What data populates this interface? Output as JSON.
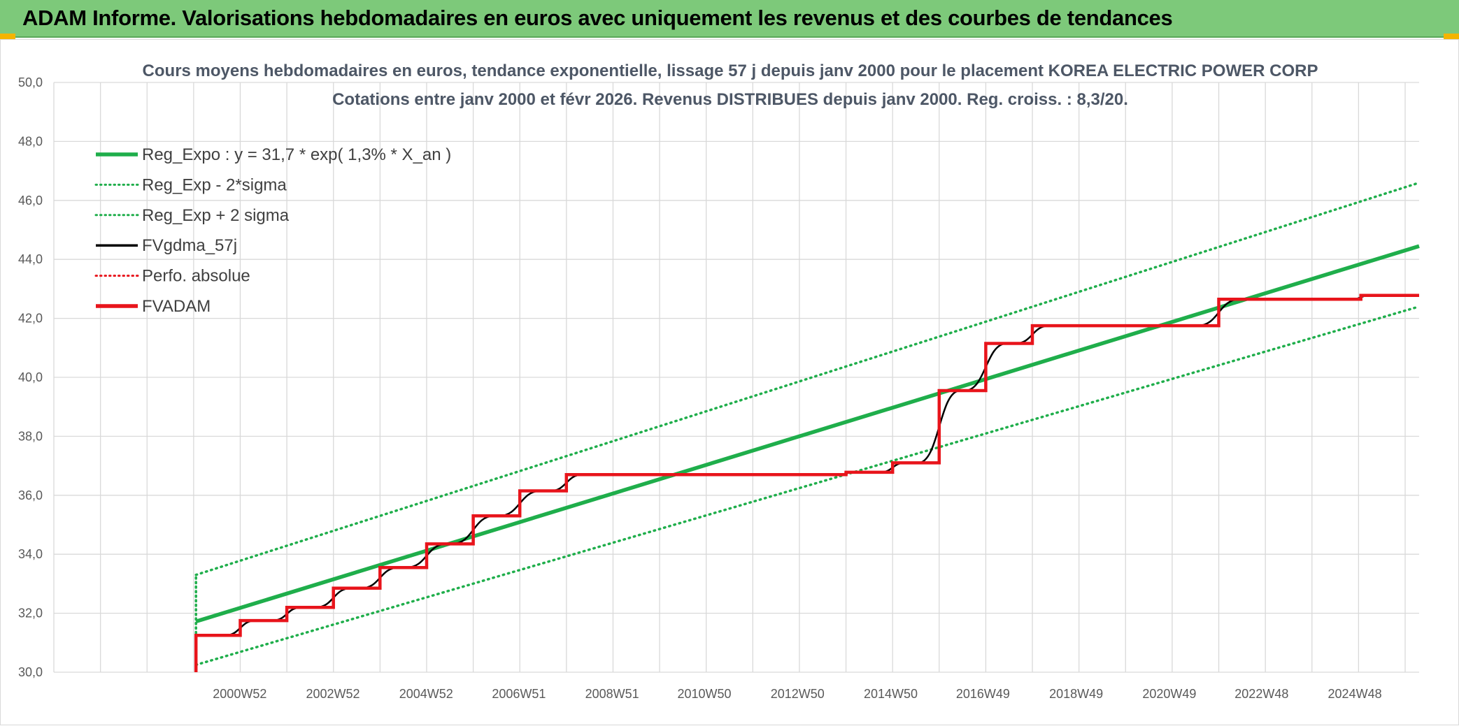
{
  "header": {
    "title": "ADAM Informe. Valorisations hebdomadaires en euros avec uniquement les revenus et des courbes de tendances"
  },
  "colors": {
    "header_bg": "#7dc97a",
    "reg_expo": "#1fae4b",
    "fv_gdma": "#000000",
    "fv_adam": "#e8141b",
    "grid": "#d9d9d9"
  },
  "chart_data": {
    "type": "line",
    "title": [
      "Cours moyens hebdomadaires en euros, tendance exponentielle, lissage 57 j depuis janv 2000 pour le placement KOREA ELECTRIC POWER CORP",
      "Cotations entre janv 2000 et févr 2026. Revenus DISTRIBUES depuis janv 2000. Reg. croiss. : 8,3/20."
    ],
    "y_ticks": [
      "30,0",
      "32,0",
      "34,0",
      "36,0",
      "38,0",
      "40,0",
      "42,0",
      "44,0",
      "46,0",
      "48,0",
      "50,0"
    ],
    "ylim": [
      30,
      50
    ],
    "x_ticks": [
      "2000W52",
      "2002W52",
      "2004W52",
      "2006W51",
      "2008W51",
      "2010W50",
      "2012W50",
      "2014W50",
      "2016W49",
      "2018W49",
      "2020W49",
      "2022W48",
      "2024W48"
    ],
    "x_tick_years": [
      2000.99,
      2002.99,
      2004.99,
      2006.98,
      2008.98,
      2010.96,
      2012.96,
      2014.96,
      2016.94,
      2018.94,
      2020.94,
      2022.92,
      2024.92
    ],
    "xlim": [
      1997.0,
      2026.3
    ],
    "grid": true,
    "legend_position": "top-left",
    "legend": [
      {
        "label": "Reg_Expo : y = 31,7 * exp( 1,3% *  X_an )",
        "style": "solid-thick",
        "color": "#1fae4b"
      },
      {
        "label": "Reg_Exp - 2*sigma",
        "style": "dotted",
        "color": "#1fae4b"
      },
      {
        "label": "Reg_Exp + 2 sigma",
        "style": "dotted",
        "color": "#1fae4b"
      },
      {
        "label": "FVgdma_57j",
        "style": "solid",
        "color": "#000000"
      },
      {
        "label": "Perfo. absolue",
        "style": "dotted",
        "color": "#e8141b"
      },
      {
        "label": "FVADAM",
        "style": "solid-thick",
        "color": "#e8141b"
      }
    ],
    "series": [
      {
        "name": "Reg_Expo : y = 31,7 * exp( 1,3% *  X_an )",
        "kind": "trend",
        "points": [
          [
            2000.05,
            31.72
          ],
          [
            2026.3,
            44.45
          ]
        ]
      },
      {
        "name": "Reg_Exp - 2*sigma",
        "kind": "trend-low",
        "points": [
          [
            2000.05,
            30.25
          ],
          [
            2026.3,
            42.4
          ]
        ]
      },
      {
        "name": "Reg_Exp + 2 sigma",
        "kind": "trend-high",
        "points": [
          [
            2000.05,
            33.3
          ],
          [
            2026.3,
            46.6
          ]
        ]
      },
      {
        "name": "FVADAM",
        "kind": "step",
        "points": [
          [
            2000.05,
            30.0
          ],
          [
            2000.05,
            31.25
          ],
          [
            2001.0,
            31.25
          ],
          [
            2001.0,
            31.75
          ],
          [
            2002.0,
            31.75
          ],
          [
            2002.0,
            32.2
          ],
          [
            2003.0,
            32.2
          ],
          [
            2003.0,
            32.85
          ],
          [
            2004.0,
            32.85
          ],
          [
            2004.0,
            33.55
          ],
          [
            2005.0,
            33.55
          ],
          [
            2005.0,
            34.35
          ],
          [
            2006.0,
            34.35
          ],
          [
            2006.0,
            35.3
          ],
          [
            2007.0,
            35.3
          ],
          [
            2007.0,
            36.15
          ],
          [
            2008.0,
            36.15
          ],
          [
            2008.0,
            36.7
          ],
          [
            2014.0,
            36.7
          ],
          [
            2014.0,
            36.78
          ],
          [
            2015.0,
            36.78
          ],
          [
            2015.0,
            37.1
          ],
          [
            2016.0,
            37.1
          ],
          [
            2016.0,
            39.55
          ],
          [
            2017.0,
            39.55
          ],
          [
            2017.0,
            41.15
          ],
          [
            2018.0,
            41.15
          ],
          [
            2018.0,
            41.75
          ],
          [
            2022.0,
            41.75
          ],
          [
            2022.0,
            42.65
          ],
          [
            2025.05,
            42.65
          ],
          [
            2025.05,
            42.78
          ],
          [
            2026.3,
            42.78
          ]
        ]
      }
    ]
  }
}
